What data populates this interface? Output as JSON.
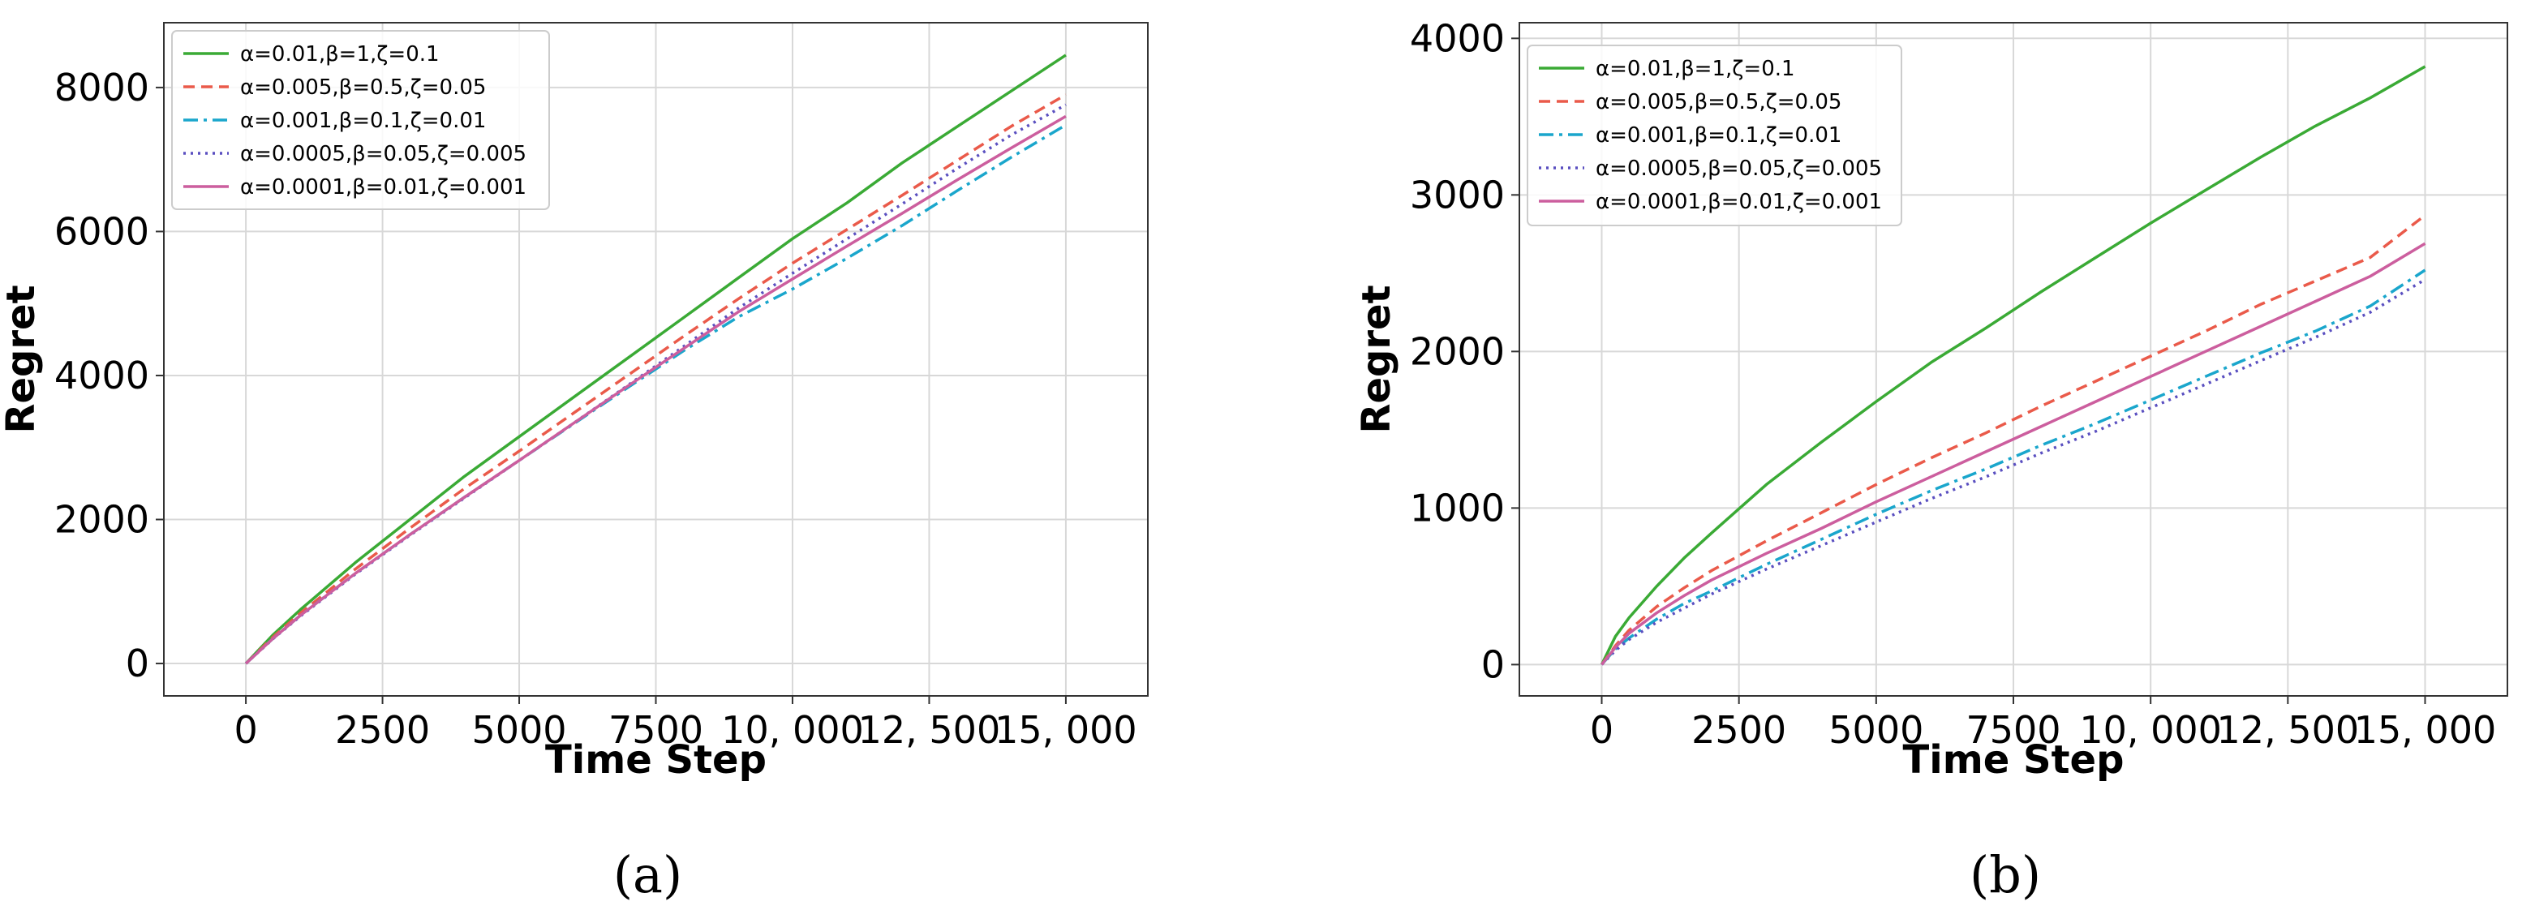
{
  "chart_data": [
    {
      "type": "line",
      "caption": "(a)",
      "title": "",
      "xlabel": "Time Step",
      "ylabel": "Regret",
      "xlim": [
        -1500,
        16500
      ],
      "ylim": [
        -450,
        8900
      ],
      "xticks": [
        0,
        2500,
        5000,
        7500,
        10000,
        12500,
        15000
      ],
      "xtick_labels": [
        "0",
        "2500",
        "5000",
        "7500",
        "10, 000",
        "12, 500",
        "15, 000"
      ],
      "yticks": [
        0,
        2000,
        4000,
        6000,
        8000
      ],
      "ytick_labels": [
        "0",
        "2000",
        "4000",
        "6000",
        "8000"
      ],
      "legend_position": "top-left",
      "x": [
        0,
        500,
        1000,
        2000,
        3000,
        4000,
        5000,
        6000,
        7000,
        8000,
        9000,
        10000,
        11000,
        12000,
        13000,
        14000,
        15000
      ],
      "series": [
        {
          "name": "α=0.01,β=1,ζ=0.1",
          "color": "#3aaa35",
          "dash": "solid",
          "values": [
            0,
            400,
            750,
            1400,
            2000,
            2600,
            3150,
            3700,
            4250,
            4800,
            5350,
            5900,
            6400,
            6950,
            7450,
            7950,
            8450
          ]
        },
        {
          "name": "α=0.005,β=0.5,ζ=0.05",
          "color": "#ea5a4a",
          "dash": "dashed",
          "values": [
            0,
            370,
            700,
            1310,
            1880,
            2430,
            2950,
            3480,
            4010,
            4540,
            5060,
            5560,
            6030,
            6500,
            6980,
            7460,
            7900
          ]
        },
        {
          "name": "α=0.001,β=0.1,ζ=0.01",
          "color": "#1aa6cc",
          "dash": "dashdot",
          "values": [
            0,
            350,
            670,
            1250,
            1790,
            2310,
            2820,
            3330,
            3840,
            4340,
            4810,
            5200,
            5630,
            6080,
            6560,
            7030,
            7480
          ]
        },
        {
          "name": "α=0.0005,β=0.05,ζ=0.005",
          "color": "#5a4fc0",
          "dash": "dotted",
          "values": [
            0,
            345,
            660,
            1240,
            1780,
            2300,
            2820,
            3340,
            3870,
            4400,
            4930,
            5420,
            5900,
            6380,
            6870,
            7340,
            7760
          ]
        },
        {
          "name": "α=0.0001,β=0.01,ζ=0.001",
          "color": "#cc5e9e",
          "dash": "solid",
          "values": [
            0,
            350,
            670,
            1250,
            1790,
            2310,
            2820,
            3340,
            3860,
            4370,
            4880,
            5340,
            5800,
            6250,
            6710,
            7160,
            7600
          ]
        }
      ]
    },
    {
      "type": "line",
      "caption": "(b)",
      "title": "",
      "xlabel": "Time Step",
      "ylabel": "Regret",
      "xlim": [
        -1500,
        16500
      ],
      "ylim": [
        -200,
        4100
      ],
      "xticks": [
        0,
        2500,
        5000,
        7500,
        10000,
        12500,
        15000
      ],
      "xtick_labels": [
        "0",
        "2500",
        "5000",
        "7500",
        "10, 000",
        "12, 500",
        "15, 000"
      ],
      "yticks": [
        0,
        1000,
        2000,
        3000,
        4000
      ],
      "ytick_labels": [
        "0",
        "1000",
        "2000",
        "3000",
        "4000"
      ],
      "legend_position": "top-left",
      "x": [
        0,
        250,
        500,
        1000,
        1500,
        2000,
        3000,
        4000,
        5000,
        6000,
        7000,
        8000,
        9000,
        10000,
        11000,
        12000,
        13000,
        14000,
        15000
      ],
      "series": [
        {
          "name": "α=0.01,β=1,ζ=0.1",
          "color": "#3aaa35",
          "dash": "solid",
          "values": [
            0,
            180,
            300,
            500,
            680,
            840,
            1150,
            1420,
            1680,
            1930,
            2150,
            2380,
            2600,
            2820,
            3030,
            3240,
            3440,
            3620,
            3820
          ]
        },
        {
          "name": "α=0.005,β=0.5,ζ=0.05",
          "color": "#ea5a4a",
          "dash": "dashed",
          "values": [
            0,
            120,
            220,
            370,
            490,
            600,
            790,
            970,
            1150,
            1320,
            1480,
            1650,
            1810,
            1970,
            2130,
            2300,
            2450,
            2600,
            2870
          ]
        },
        {
          "name": "α=0.001,β=0.1,ζ=0.01",
          "color": "#1aa6cc",
          "dash": "dashdot",
          "values": [
            0,
            100,
            170,
            290,
            390,
            470,
            640,
            800,
            960,
            1110,
            1250,
            1400,
            1540,
            1690,
            1840,
            1990,
            2130,
            2290,
            2520
          ]
        },
        {
          "name": "α=0.0005,β=0.05,ζ=0.005",
          "color": "#5a4fc0",
          "dash": "dotted",
          "values": [
            0,
            90,
            160,
            270,
            360,
            450,
            610,
            760,
            910,
            1060,
            1200,
            1350,
            1490,
            1640,
            1790,
            1940,
            2090,
            2250,
            2460
          ]
        },
        {
          "name": "α=0.0001,β=0.01,ζ=0.001",
          "color": "#cc5e9e",
          "dash": "solid",
          "values": [
            0,
            110,
            200,
            330,
            440,
            540,
            710,
            870,
            1040,
            1200,
            1360,
            1520,
            1680,
            1840,
            2000,
            2160,
            2320,
            2480,
            2690
          ]
        }
      ]
    }
  ]
}
